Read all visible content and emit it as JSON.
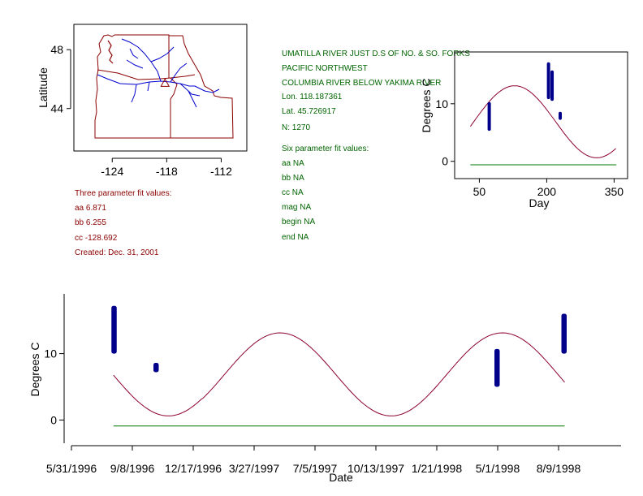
{
  "colors": {
    "fit_curve": "#8b0030",
    "observations": "#00008b",
    "baseline": "#007700",
    "state_border": "#8b0000",
    "rivers": "#0000cc",
    "text_red": "#8b0000",
    "text_green": "#006400"
  },
  "station": {
    "name": "UMATILLA RIVER JUST D.S OF NO. & SO. FORKS",
    "region": "PACIFIC NORTHWEST",
    "basin": "COLUMBIA RIVER BELOW YAKIMA RIVER",
    "lon": "Lon. 118.187361",
    "lat": "Lat. 45.726917",
    "n": "N: 1270"
  },
  "three_param": {
    "header": "Three parameter fit values:",
    "aa": "aa 6.871",
    "bb": "bb 6.255",
    "cc": "cc -128.692",
    "created": "Created:   Dec. 31, 2001"
  },
  "six_param": {
    "header": "Six parameter fit values:",
    "aa": "aa NA",
    "bb": "bb NA",
    "cc": "cc NA",
    "mag": "mag NA",
    "begin": "begin NA",
    "end": "end NA"
  },
  "fit": {
    "aa": 6.871,
    "bb": 6.255,
    "cc": -128.692,
    "baseline_y": -0.6
  },
  "chart_data": [
    {
      "type": "map",
      "ylabel": "Latitude",
      "xticks": [
        -124,
        -118,
        -112
      ],
      "yticks": [
        44,
        48
      ],
      "xlim": [
        -127,
        -110
      ],
      "ylim": [
        41.5,
        50
      ],
      "site": {
        "lon": -118.187361,
        "lat": 45.726917,
        "marker": "triangle"
      }
    },
    {
      "type": "scatter",
      "xlabel": "Day",
      "ylabel": "Degrees C",
      "xlim": [
        -5,
        380
      ],
      "ylim": [
        -3,
        19
      ],
      "xticks": [
        50,
        200,
        350
      ],
      "yticks": [
        0,
        10
      ],
      "fit_curve": "aa + bb*cos(2*pi*(day+cc)/365)",
      "baseline": {
        "y": -0.6,
        "x_range": [
          30,
          355
        ]
      },
      "obs_clusters": [
        {
          "x": 72,
          "ymin": 5.3,
          "ymax": 10.3
        },
        {
          "x": 204,
          "ymin": 10.8,
          "ymax": 17.2
        },
        {
          "x": 212,
          "ymin": 10.5,
          "ymax": 15.8
        },
        {
          "x": 230,
          "ymin": 7.2,
          "ymax": 8.6
        }
      ]
    },
    {
      "type": "scatter",
      "xlabel": "Date",
      "ylabel": "Degrees C",
      "xlim": [
        "1996-05-24",
        "1998-12-05"
      ],
      "ylim": [
        -3.5,
        19
      ],
      "xtick_labels": [
        "5/31/1996",
        "9/8/1996",
        "12/17/1996",
        "3/27/1997",
        "7/5/1997",
        "10/13/1997",
        "1/21/1998",
        "5/1/1998",
        "8/9/1998"
      ],
      "xtick_dates": [
        "1996-05-31",
        "1996-09-08",
        "1996-12-17",
        "1997-03-27",
        "1997-07-05",
        "1997-10-13",
        "1998-01-21",
        "1998-05-01",
        "1998-08-09"
      ],
      "yticks": [
        0,
        10
      ],
      "fit_curve": "aa + bb*cos(2*pi*(day_of_year+cc)/365)",
      "baseline": {
        "y": -0.9,
        "x_range": [
          "1996-08-08",
          "1998-08-19"
        ]
      },
      "obs_clusters": [
        {
          "x": [
            "1996-08-08",
            "1996-08-10"
          ],
          "ymin": 10.0,
          "ymax": 17.2
        },
        {
          "x": [
            "1996-10-16",
            "1996-10-18"
          ],
          "ymin": 7.2,
          "ymax": 8.6
        },
        {
          "x": [
            "1998-04-29",
            "1998-05-01"
          ],
          "ymin": 5.0,
          "ymax": 10.7
        },
        {
          "x": [
            "1998-08-17",
            "1998-08-19"
          ],
          "ymin": 10.0,
          "ymax": 16.0
        }
      ]
    }
  ]
}
